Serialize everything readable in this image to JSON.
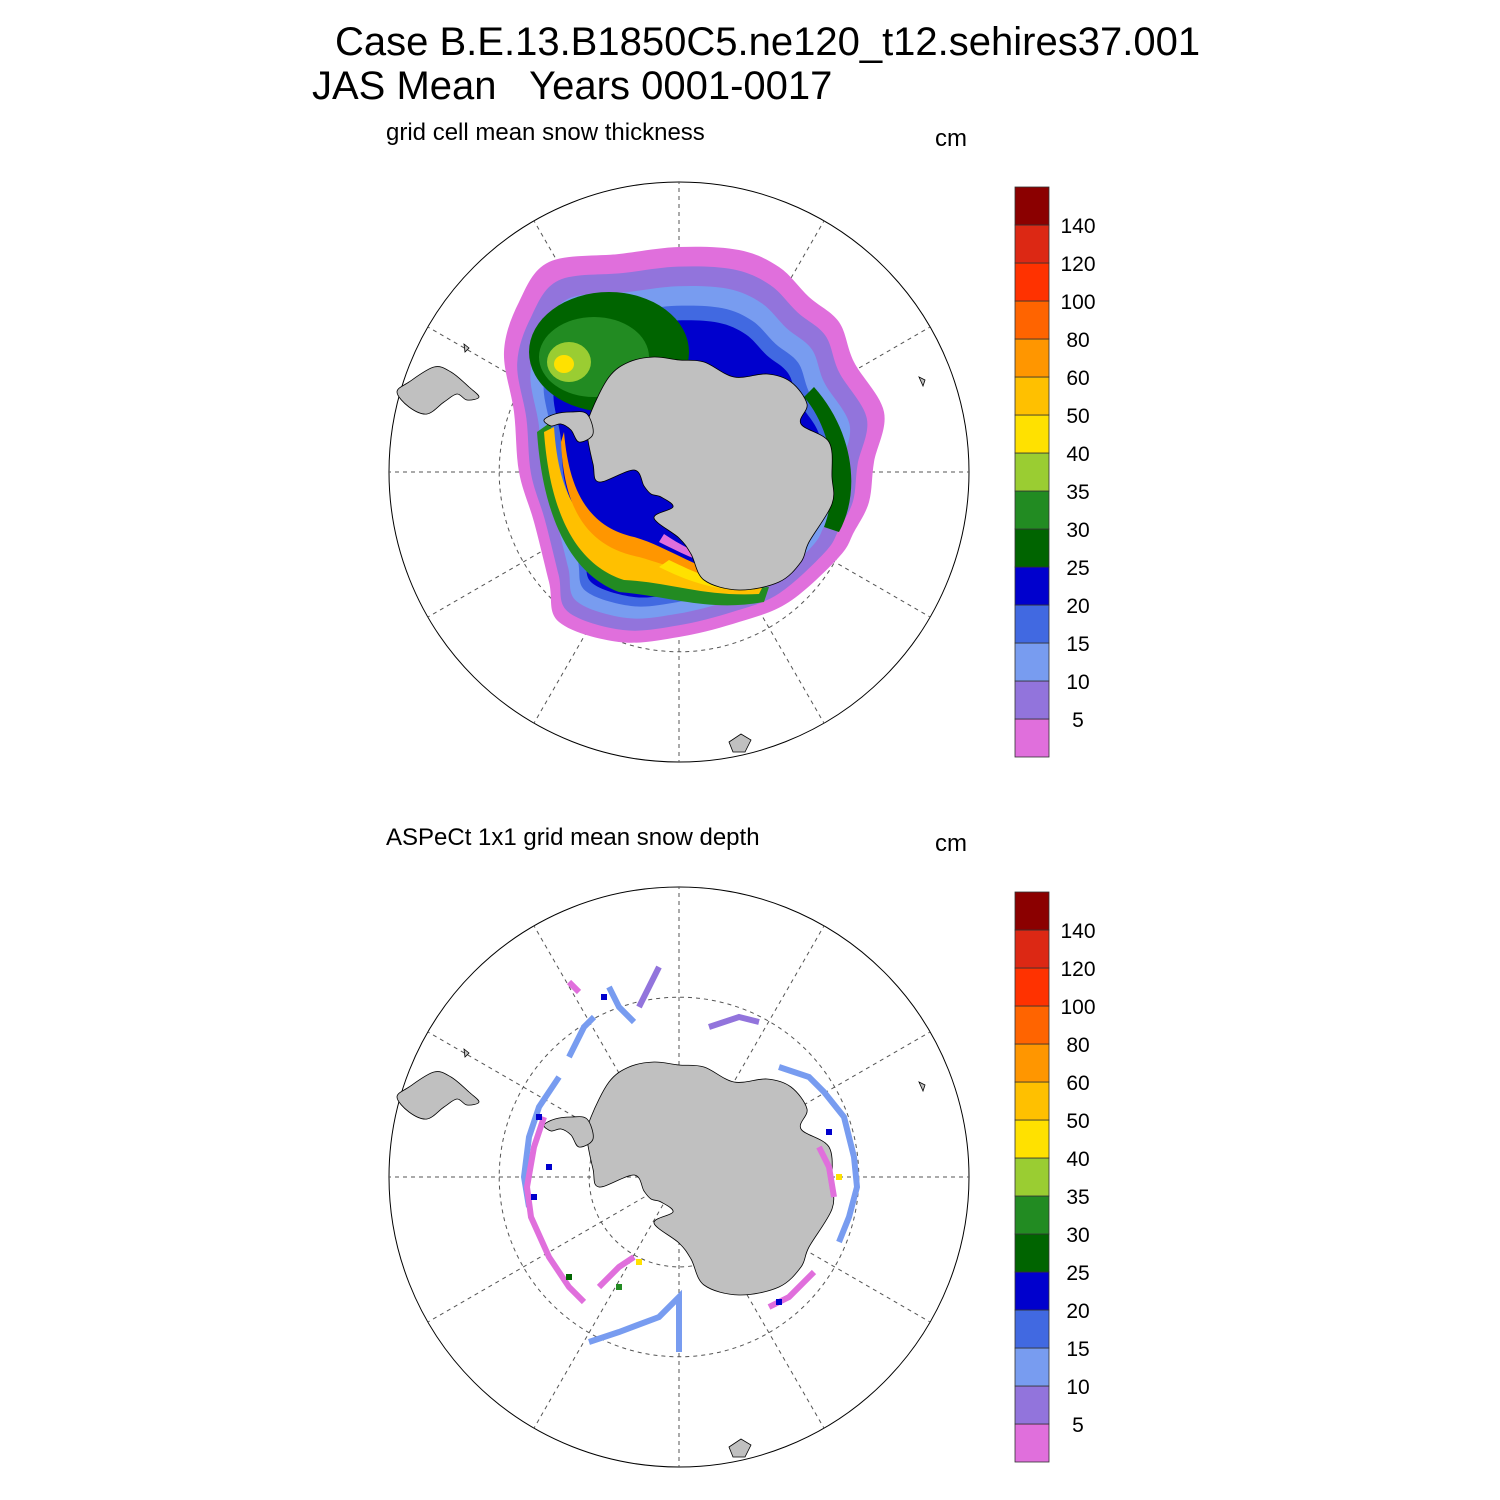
{
  "header": {
    "line1": "Case B.E.13.B1850C5.ne120_t12.sehires37.001",
    "line2": "JAS Mean   Years 0001-0017"
  },
  "colorbar": {
    "labels": [
      "5",
      "10",
      "15",
      "20",
      "25",
      "30",
      "35",
      "40",
      "50",
      "60",
      "80",
      "100",
      "120",
      "140"
    ],
    "colors": [
      "#e06fdc",
      "#9274dc",
      "#789cf0",
      "#4169e1",
      "#0000cd",
      "#006400",
      "#228b22",
      "#9acd32",
      "#ffe100",
      "#ffc000",
      "#ff9600",
      "#ff6400",
      "#ff3200",
      "#dc2814",
      "#8b0000"
    ]
  },
  "panels": [
    {
      "subtitle": "grid cell mean snow thickness",
      "units": "cm",
      "kind": "model"
    },
    {
      "subtitle": "ASPeCt 1x1 grid mean snow depth",
      "units": "cm",
      "kind": "obs"
    }
  ],
  "colors": {
    "land": "#c0c0c0",
    "grid": "#555555"
  }
}
